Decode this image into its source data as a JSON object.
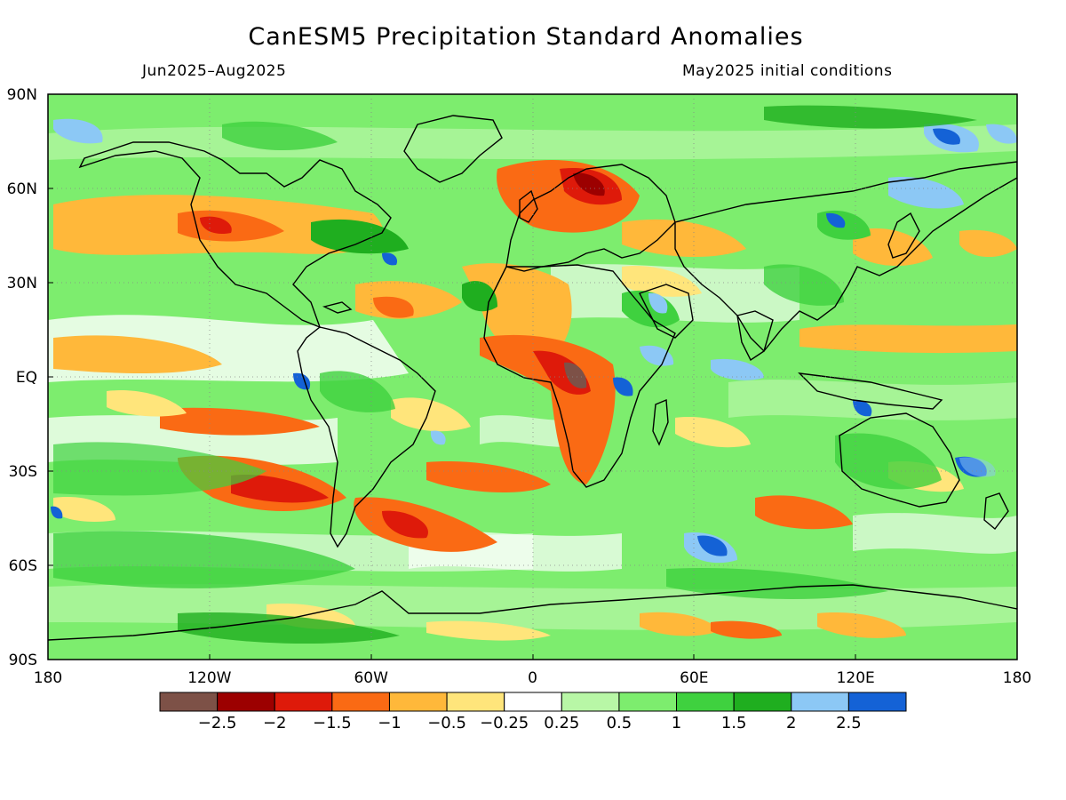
{
  "title": "CanESM5 Precipitation Standard Anomalies",
  "period": "Jun2025–Aug2025",
  "init": "May2025 initial conditions",
  "lat_labels": [
    "90N",
    "60N",
    "30N",
    "EQ",
    "30S",
    "60S",
    "90S"
  ],
  "lon_labels": [
    "180",
    "120W",
    "60W",
    "0",
    "60E",
    "120E",
    "180"
  ],
  "colorbar": {
    "colors": [
      "#7d5147",
      "#9c0000",
      "#de1a0a",
      "#fa6a14",
      "#ffb83a",
      "#ffe57b",
      "#ffffff",
      "#b8f7a6",
      "#7ded6e",
      "#3fd13f",
      "#1fae1f",
      "#8cc8f5",
      "#1462d6"
    ],
    "labels": [
      "−2.5",
      "−2",
      "−1.5",
      "−1",
      "−0.5",
      "−0.25",
      "0.25",
      "0.5",
      "1",
      "1.5",
      "2",
      "2.5"
    ]
  },
  "colors": {
    "ocean_base": "#7ded6e",
    "coast": "#000000",
    "grid": "#888888"
  }
}
